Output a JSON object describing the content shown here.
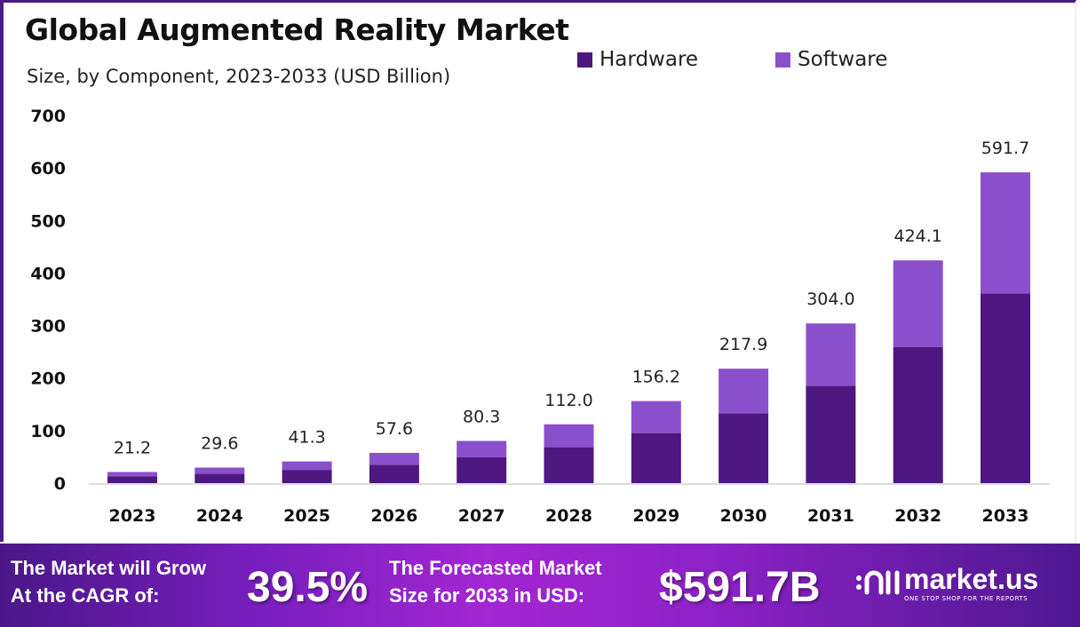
{
  "chart_data": {
    "type": "bar",
    "stacked": true,
    "title": "Global Augmented Reality Market",
    "subtitle": "Size, by Component, 2023-2033 (USD Billion)",
    "categories": [
      "2023",
      "2024",
      "2025",
      "2026",
      "2027",
      "2028",
      "2029",
      "2030",
      "2031",
      "2032",
      "2033"
    ],
    "totals": [
      "21.2",
      "29.6",
      "41.3",
      "57.6",
      "80.3",
      "112.0",
      "156.2",
      "217.9",
      "304.0",
      "424.1",
      "591.7"
    ],
    "series": [
      {
        "name": "Hardware",
        "color": "#4f1780",
        "values": [
          12.9,
          18.0,
          25.2,
          35.1,
          49.0,
          68.3,
          95.3,
          132.9,
          185.4,
          258.7,
          360.9
        ]
      },
      {
        "name": "Software",
        "color": "#8a50cc",
        "values": [
          8.3,
          11.6,
          16.1,
          22.5,
          31.3,
          43.7,
          60.9,
          85.0,
          118.6,
          165.4,
          230.8
        ]
      }
    ],
    "yticks": [
      "0",
      "100",
      "200",
      "300",
      "400",
      "500",
      "600",
      "700"
    ],
    "ylim": [
      0,
      700
    ],
    "grid": false,
    "legend": "top-right"
  },
  "footer": {
    "cagr_text_1": "The Market will Grow",
    "cagr_text_2": "At the CAGR of:",
    "cagr_value": "39.5%",
    "forecast_text_1": "The Forecasted Market",
    "forecast_text_2": "Size for 2033 in USD:",
    "forecast_value": "$591.7B",
    "logo_name": "market.us",
    "logo_tagline": "ONE STOP SHOP FOR THE REPORTS"
  }
}
